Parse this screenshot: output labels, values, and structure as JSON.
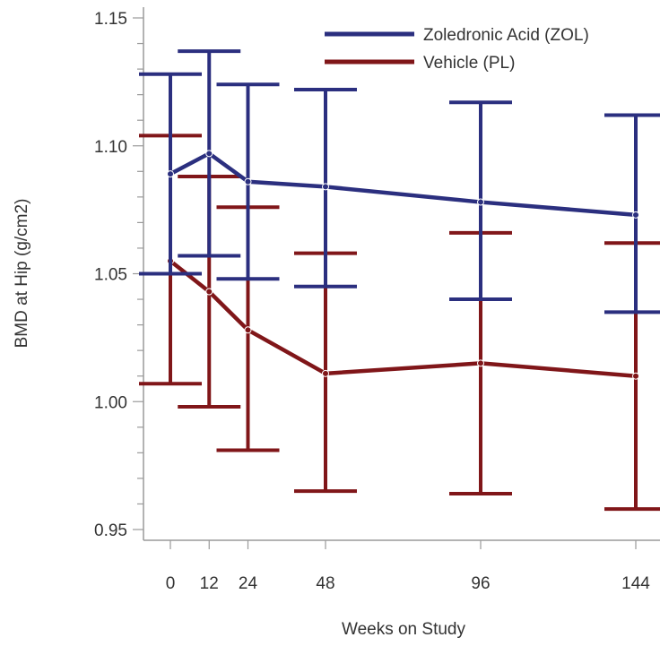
{
  "chart_data": {
    "type": "line",
    "title": "",
    "xlabel": "Weeks on Study",
    "ylabel": "BMD at Hip (g/cm2)",
    "x": [
      0,
      12,
      24,
      48,
      96,
      144
    ],
    "x_tick_labels": [
      "0",
      "12",
      "24",
      "48",
      "96",
      "144"
    ],
    "ylim": [
      0.95,
      1.15
    ],
    "y_ticks": [
      0.95,
      1.0,
      1.05,
      1.1,
      1.15
    ],
    "y_tick_labels": [
      "0.95",
      "1.00",
      "1.05",
      "1.10",
      "1.15"
    ],
    "legend_position": "top-right",
    "grid": false,
    "series": [
      {
        "name": "Zoledronic Acid (ZOL)",
        "color": "#2b2f7f",
        "values": [
          1.089,
          1.097,
          1.086,
          1.084,
          1.078,
          1.073
        ],
        "lower": [
          1.05,
          1.057,
          1.048,
          1.045,
          1.04,
          1.035
        ],
        "upper": [
          1.128,
          1.137,
          1.124,
          1.122,
          1.117,
          1.112
        ]
      },
      {
        "name": "Vehicle (PL)",
        "color": "#801619",
        "values": [
          1.055,
          1.043,
          1.028,
          1.011,
          1.015,
          1.01
        ],
        "lower": [
          1.007,
          0.998,
          0.981,
          0.965,
          0.964,
          0.958
        ],
        "upper": [
          1.104,
          1.088,
          1.076,
          1.058,
          1.066,
          1.062
        ]
      }
    ]
  }
}
